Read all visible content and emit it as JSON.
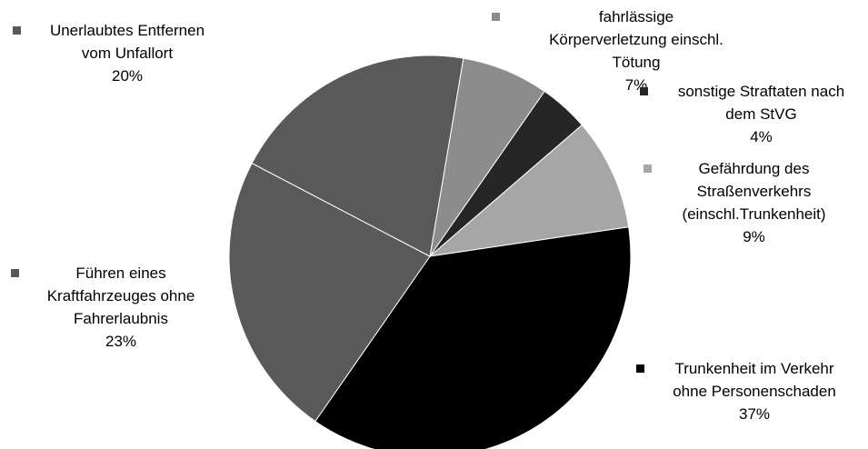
{
  "chart_data": {
    "type": "pie",
    "categories": [
      "fahrlässige Körperverletzung einschl. Tötung",
      "sonstige Straftaten nach dem StVG",
      "Gefährdung des Straßenverkehrs (einschl.Trunkenheit)",
      "Trunkenheit im Verkehr ohne Personenschaden",
      "Führen eines Kraftfahrzeuges ohne Fahrerlaubnis",
      "Unerlaubtes Entfernen vom Unfallort"
    ],
    "values": [
      7,
      4,
      9,
      37,
      23,
      20
    ],
    "value_labels": [
      "7%",
      "4%",
      "9%",
      "37%",
      "23%",
      "20%"
    ],
    "colors": [
      "#8c8c8c",
      "#262626",
      "#a6a6a6",
      "#000000",
      "#595959",
      "#595959"
    ]
  }
}
